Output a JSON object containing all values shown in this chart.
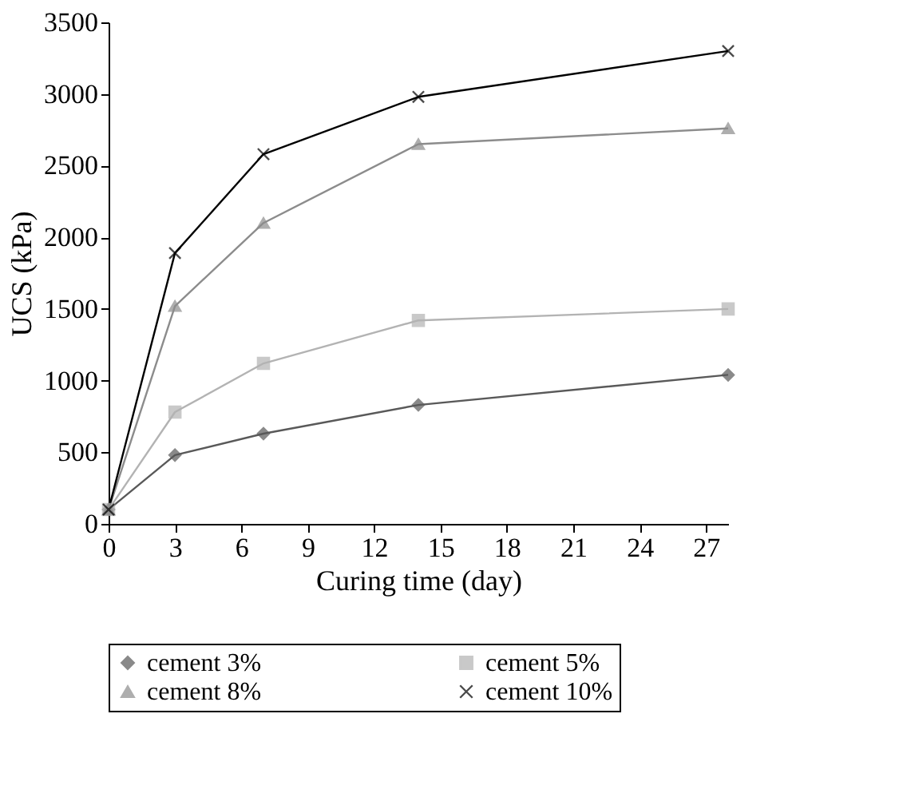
{
  "chart_data": {
    "type": "line",
    "xlabel": "Curing time (day)",
    "ylabel": "UCS (kPa)",
    "xlim": [
      0,
      28
    ],
    "xticks": [
      0,
      3,
      6,
      9,
      12,
      15,
      18,
      21,
      24,
      27
    ],
    "ylim": [
      0,
      3500
    ],
    "yticks": [
      0,
      500,
      1000,
      1500,
      2000,
      2500,
      3000,
      3500
    ],
    "x": [
      0,
      3,
      7,
      14,
      28
    ],
    "grid": false,
    "legend": "bottom",
    "line_style": "solid",
    "series": [
      {
        "name": "cement 3%",
        "color": "#595959",
        "marker": "diamond",
        "values": [
          100,
          480,
          630,
          830,
          1040
        ]
      },
      {
        "name": "cement 5%",
        "color": "#b3b3b3",
        "marker": "square",
        "values": [
          100,
          780,
          1120,
          1420,
          1500
        ]
      },
      {
        "name": "cement 8%",
        "color": "#8c8c8c",
        "marker": "triangle",
        "values": [
          100,
          1520,
          2100,
          2650,
          2760
        ]
      },
      {
        "name": "cement 10%",
        "color": "#000000",
        "marker": "cross",
        "values": [
          100,
          1890,
          2580,
          2980,
          3300
        ]
      }
    ]
  }
}
